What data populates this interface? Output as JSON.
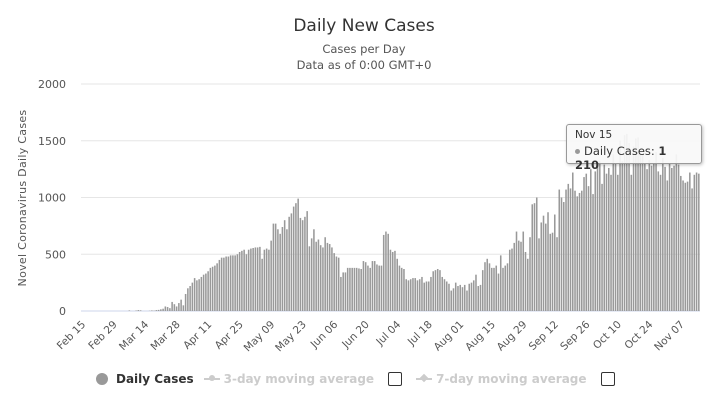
{
  "chart_data": {
    "type": "bar",
    "title": "Daily New Cases",
    "subtitle": [
      "Cases per Day",
      "Data as of 0:00 GMT+0"
    ],
    "ylabel": "Novel Coronavirus Daily Cases",
    "xlabel": "",
    "ylim": [
      0,
      2000
    ],
    "yticks": [
      "0",
      "500",
      "1000",
      "1500",
      "2000"
    ],
    "ytick_values": [
      0,
      500,
      1000,
      1500,
      2000
    ],
    "xticks": [
      "Feb 15",
      "Feb 29",
      "Mar 14",
      "Mar 28",
      "Apr 11",
      "Apr 25",
      "May 09",
      "May 23",
      "Jun 06",
      "Jun 20",
      "Jul 04",
      "Jul 18",
      "Aug 01",
      "Aug 15",
      "Aug 29",
      "Sep 12",
      "Sep 26",
      "Oct 10",
      "Oct 24",
      "Nov 07"
    ],
    "xtick_interval_days": 14,
    "grid": true,
    "bar_color": "#999999",
    "series": [
      {
        "name": "Daily Cases",
        "values": [
          0,
          0,
          0,
          0,
          0,
          0,
          0,
          0,
          0,
          0,
          0,
          0,
          0,
          0,
          0,
          0,
          0,
          0,
          0,
          0,
          0,
          5,
          0,
          0,
          4,
          8,
          6,
          0,
          0,
          0,
          2,
          5,
          3,
          8,
          10,
          15,
          20,
          40,
          35,
          25,
          80,
          60,
          40,
          70,
          100,
          50,
          150,
          200,
          220,
          250,
          290,
          270,
          280,
          300,
          320,
          330,
          350,
          380,
          390,
          400,
          420,
          450,
          470,
          470,
          480,
          480,
          490,
          490,
          490,
          500,
          520,
          530,
          540,
          500,
          540,
          550,
          555,
          560,
          560,
          565,
          460,
          540,
          550,
          540,
          620,
          770,
          770,
          720,
          680,
          740,
          800,
          720,
          830,
          860,
          920,
          950,
          990,
          820,
          800,
          830,
          880,
          570,
          640,
          720,
          610,
          630,
          580,
          560,
          650,
          600,
          590,
          560,
          510,
          480,
          470,
          300,
          340,
          340,
          380,
          380,
          380,
          380,
          380,
          375,
          370,
          440,
          430,
          400,
          380,
          440,
          440,
          410,
          400,
          400,
          670,
          700,
          680,
          540,
          520,
          530,
          460,
          400,
          380,
          370,
          280,
          270,
          280,
          290,
          290,
          270,
          280,
          300,
          250,
          260,
          260,
          300,
          350,
          360,
          370,
          360,
          300,
          280,
          260,
          240,
          180,
          200,
          250,
          220,
          230,
          210,
          230,
          180,
          240,
          250,
          270,
          320,
          220,
          230,
          360,
          430,
          460,
          420,
          380,
          380,
          400,
          330,
          490,
          380,
          400,
          420,
          540,
          550,
          600,
          700,
          620,
          610,
          700,
          520,
          460,
          650,
          940,
          950,
          1000,
          640,
          780,
          840,
          770,
          870,
          680,
          690,
          850,
          650,
          1070,
          1000,
          960,
          1070,
          1120,
          1080,
          1220,
          1060,
          1010,
          1040,
          1060,
          1180,
          1210,
          1100,
          1250,
          1030,
          1230,
          1300,
          1320,
          1120,
          1290,
          1210,
          1260,
          1200,
          1380,
          1300,
          1200,
          1500,
          1320,
          1550,
          1560,
          1480,
          1200,
          1450,
          1520,
          1530,
          1400,
          1380,
          1300,
          1250,
          1330,
          1280,
          1300,
          1400,
          1230,
          1200,
          1350,
          1270,
          1150,
          1300,
          1260,
          1280,
          1380,
          1290,
          1190,
          1150,
          1130,
          1140,
          1220,
          1080,
          1200,
          1220,
          1210
        ]
      }
    ],
    "tooltip": {
      "date": "Nov 15",
      "label": "Daily Cases:",
      "value": "1 210"
    },
    "legend": {
      "placement": "bottom",
      "items": [
        {
          "label": "Daily Cases",
          "active": true
        },
        {
          "label": "3-day moving average",
          "active": false,
          "checked": false
        },
        {
          "label": "7-day moving average",
          "active": false,
          "checked": false
        }
      ]
    }
  }
}
